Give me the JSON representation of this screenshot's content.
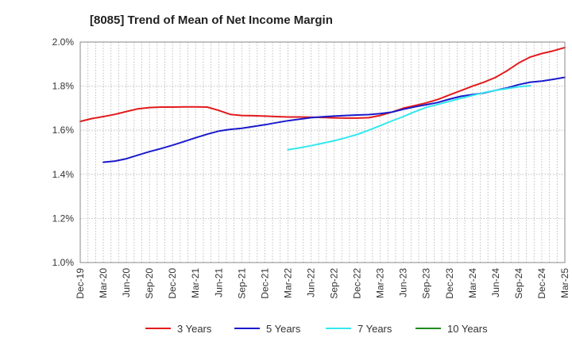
{
  "chart_data": {
    "type": "line",
    "title": "[8085]  Trend of Mean of Net Income Margin",
    "xlabel": "",
    "ylabel": "",
    "x_ticks": [
      "Dec-19",
      "Mar-20",
      "Jun-20",
      "Sep-20",
      "Dec-20",
      "Mar-21",
      "Jun-21",
      "Sep-21",
      "Dec-21",
      "Mar-22",
      "Jun-22",
      "Sep-22",
      "Dec-22",
      "Mar-23",
      "Jun-23",
      "Sep-23",
      "Dec-23",
      "Mar-24",
      "Jun-24",
      "Sep-24",
      "Dec-24",
      "Mar-25"
    ],
    "y_ticks": [
      "1.0%",
      "1.2%",
      "1.4%",
      "1.6%",
      "1.8%",
      "2.0%"
    ],
    "ylim": [
      1.0,
      2.0
    ],
    "grid": true,
    "legend_position": "bottom",
    "series": [
      {
        "name": "3 Years",
        "color": "#e31a1c",
        "values": [
          1.64,
          1.653,
          1.662,
          1.672,
          1.685,
          1.697,
          1.703,
          1.705,
          1.705,
          1.706,
          1.706,
          1.705,
          1.69,
          1.672,
          1.667,
          1.666,
          1.664,
          1.662,
          1.66,
          1.66,
          1.659,
          1.658,
          1.656,
          1.655,
          1.655,
          1.657,
          1.667,
          1.682,
          1.7,
          1.712,
          1.724,
          1.74,
          1.76,
          1.78,
          1.8,
          1.818,
          1.84,
          1.87,
          1.905,
          1.932,
          1.948,
          1.96,
          1.975
        ]
      },
      {
        "name": "5 Years",
        "color": "#1a1acd",
        "values": [
          null,
          null,
          1.455,
          1.46,
          1.471,
          1.487,
          1.503,
          1.517,
          1.532,
          1.549,
          1.566,
          1.582,
          1.596,
          1.604,
          1.609,
          1.617,
          1.625,
          1.634,
          1.643,
          1.65,
          1.657,
          1.661,
          1.664,
          1.667,
          1.669,
          1.671,
          1.675,
          1.682,
          1.695,
          1.706,
          1.716,
          1.726,
          1.741,
          1.754,
          1.762,
          1.769,
          1.781,
          1.792,
          1.807,
          1.818,
          1.823,
          1.831,
          1.84
        ]
      },
      {
        "name": "7 Years",
        "color": "#33e8ee",
        "values": [
          null,
          null,
          null,
          null,
          null,
          null,
          null,
          null,
          null,
          null,
          null,
          null,
          null,
          null,
          null,
          null,
          null,
          null,
          1.512,
          1.52,
          1.53,
          1.541,
          1.552,
          1.566,
          1.581,
          1.6,
          1.621,
          1.642,
          1.662,
          1.684,
          1.704,
          1.717,
          1.731,
          1.745,
          1.758,
          1.771,
          1.781,
          1.789,
          1.797,
          1.802
        ]
      },
      {
        "name": "10 Years",
        "color": "#1e8c1e",
        "values": []
      }
    ]
  }
}
